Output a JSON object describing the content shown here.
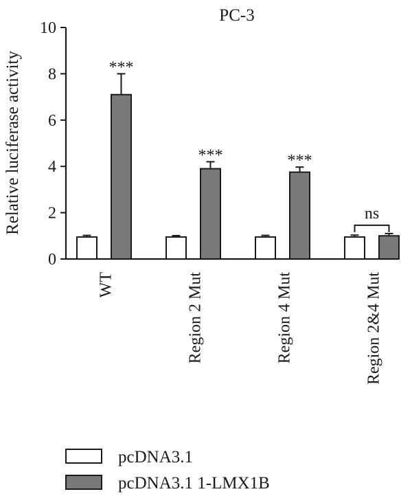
{
  "chart_data": {
    "type": "bar",
    "title": "PC-3",
    "xlabel": "",
    "ylabel": "Relative luciferase activity",
    "ylim": [
      0,
      10
    ],
    "yticks": [
      "0",
      "2",
      "4",
      "6",
      "8",
      "10"
    ],
    "categories": [
      "WT",
      "Region 2 Mut",
      "Region 4 Mut",
      "Region 2&4 Mut"
    ],
    "series": [
      {
        "name": "pcDNA3.1",
        "color": "#ffffff",
        "values": [
          0.95,
          0.95,
          0.95,
          0.95
        ],
        "errors": [
          0.07,
          0.06,
          0.07,
          0.08
        ]
      },
      {
        "name": "pcDNA3.1 1-LMX1B",
        "color": "#7a7a7a",
        "values": [
          7.1,
          3.9,
          3.75,
          1.0
        ],
        "errors": [
          0.9,
          0.3,
          0.22,
          0.1
        ]
      }
    ],
    "annotations": [
      "***",
      "***",
      "***",
      "ns"
    ],
    "grid": false,
    "legend_position": "bottom-left"
  }
}
